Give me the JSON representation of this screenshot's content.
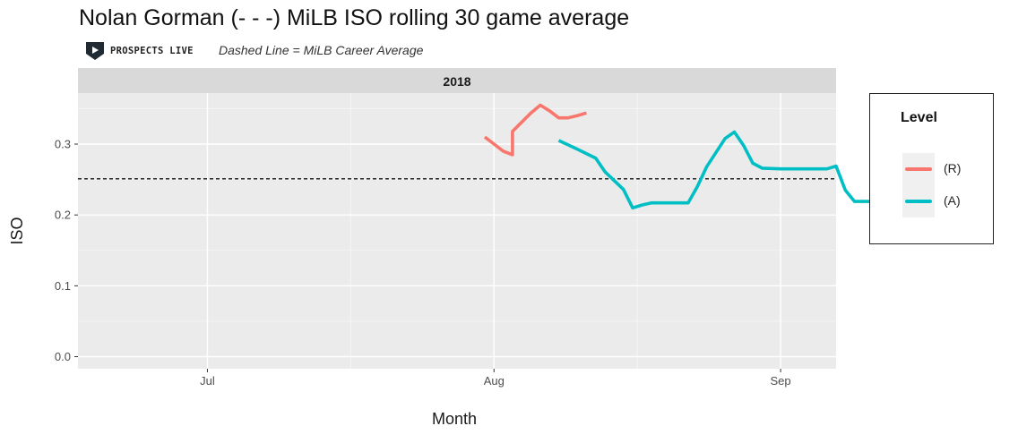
{
  "title": "Nolan Gorman (- - -) MiLB ISO rolling 30 game average",
  "logo_text": "PROSPECTS LIVE",
  "subtitle": "Dashed Line = MiLB Career Average",
  "chart_data": {
    "type": "line",
    "facet_label": "2018",
    "xlabel": "Month",
    "ylabel": "ISO",
    "x_ticks": [
      "Jul",
      "Aug",
      "Sep"
    ],
    "x_tick_dates": [
      "2018-07-01",
      "2018-08-01",
      "2018-09-01"
    ],
    "xlim": [
      "2018-06-17",
      "2018-09-07"
    ],
    "y_ticks": [
      "0.0",
      "0.1",
      "0.2",
      "0.3"
    ],
    "y_tick_values": [
      0.0,
      0.1,
      0.2,
      0.3
    ],
    "ylim": [
      -0.017,
      0.372
    ],
    "grid": true,
    "career_average": 0.251,
    "legend_title": "Level",
    "legend_position": "right",
    "series": [
      {
        "name": "(R)",
        "color": "#F8766D",
        "points": [
          {
            "x": "2018-07-31",
            "y": 0.31
          },
          {
            "x": "2018-08-01",
            "y": 0.3
          },
          {
            "x": "2018-08-02",
            "y": 0.29
          },
          {
            "x": "2018-08-03",
            "y": 0.285
          },
          {
            "x": "2018-08-03",
            "y": 0.318
          },
          {
            "x": "2018-08-04",
            "y": 0.331
          },
          {
            "x": "2018-08-05",
            "y": 0.344
          },
          {
            "x": "2018-08-06",
            "y": 0.355
          },
          {
            "x": "2018-08-07",
            "y": 0.347
          },
          {
            "x": "2018-08-08",
            "y": 0.337
          },
          {
            "x": "2018-08-09",
            "y": 0.337
          },
          {
            "x": "2018-08-10",
            "y": 0.34
          },
          {
            "x": "2018-08-11",
            "y": 0.344
          }
        ]
      },
      {
        "name": "(A)",
        "color": "#00BFC4",
        "points": [
          {
            "x": "2018-08-08",
            "y": 0.305
          },
          {
            "x": "2018-08-10",
            "y": 0.293
          },
          {
            "x": "2018-08-12",
            "y": 0.28
          },
          {
            "x": "2018-08-13",
            "y": 0.261
          },
          {
            "x": "2018-08-15",
            "y": 0.236
          },
          {
            "x": "2018-08-16",
            "y": 0.21
          },
          {
            "x": "2018-08-17",
            "y": 0.214
          },
          {
            "x": "2018-08-18",
            "y": 0.217
          },
          {
            "x": "2018-08-20",
            "y": 0.217
          },
          {
            "x": "2018-08-22",
            "y": 0.217
          },
          {
            "x": "2018-08-23",
            "y": 0.24
          },
          {
            "x": "2018-08-24",
            "y": 0.268
          },
          {
            "x": "2018-08-26",
            "y": 0.308
          },
          {
            "x": "2018-08-27",
            "y": 0.317
          },
          {
            "x": "2018-08-28",
            "y": 0.298
          },
          {
            "x": "2018-08-29",
            "y": 0.273
          },
          {
            "x": "2018-08-30",
            "y": 0.266
          },
          {
            "x": "2018-09-01",
            "y": 0.265
          },
          {
            "x": "2018-09-03",
            "y": 0.265
          },
          {
            "x": "2018-09-05",
            "y": 0.265
          },
          {
            "x": "2018-09-06",
            "y": 0.265
          },
          {
            "x": "2018-09-07",
            "y": 0.269
          },
          {
            "x": "2018-09-08",
            "y": 0.235
          },
          {
            "x": "2018-09-09",
            "y": 0.219
          },
          {
            "x": "2018-09-10",
            "y": 0.219
          },
          {
            "x": "2018-09-11",
            "y": 0.219
          }
        ]
      }
    ]
  }
}
